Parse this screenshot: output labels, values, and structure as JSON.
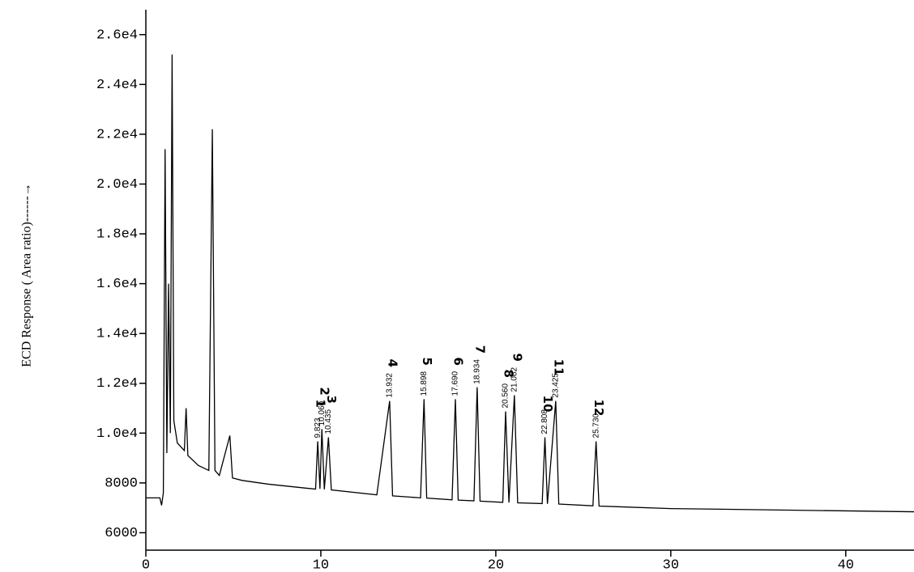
{
  "chart_data": {
    "type": "line",
    "y_label": "ECD Response ( Area ratio)------→",
    "x": [
      0,
      0.8,
      0.9,
      1.0,
      1.1,
      1.2,
      1.3,
      1.4,
      1.5,
      1.6,
      1.8,
      2.2,
      2.3,
      2.4,
      3.0,
      3.6,
      3.8,
      3.95,
      4.2,
      4.8,
      4.95,
      5.5,
      7,
      9.7,
      9.823,
      9.95,
      10.06,
      10.2,
      10.435,
      10.6,
      13.2,
      13.932,
      14.1,
      15.7,
      15.898,
      16.05,
      17.5,
      17.69,
      17.85,
      18.75,
      18.934,
      19.1,
      20.4,
      20.56,
      20.75,
      21.062,
      21.25,
      22.65,
      22.808,
      22.95,
      23.425,
      23.6,
      25.55,
      25.73,
      25.9,
      30,
      44
    ],
    "values": [
      7400,
      7400,
      7100,
      7600,
      21400,
      9200,
      16000,
      10000,
      25200,
      10500,
      9600,
      9300,
      11000,
      9100,
      8700,
      8500,
      22200,
      8500,
      8300,
      9900,
      8200,
      8100,
      7950,
      7750,
      9670,
      7760,
      10160,
      7740,
      9830,
      7720,
      7520,
      11290,
      7480,
      7400,
      11360,
      7390,
      7320,
      11360,
      7310,
      7280,
      11840,
      7270,
      7220,
      10870,
      7210,
      11520,
      7200,
      7170,
      9830,
      7160,
      11290,
      7150,
      7080,
      9670,
      7070,
      6970,
      6840
    ],
    "color": "#000000",
    "xlim": [
      0,
      43.9
    ],
    "ylim": [
      5300,
      27000
    ],
    "xticks": [
      0,
      10,
      20,
      30,
      40
    ],
    "yticks": [
      6000,
      8000,
      {
        "value": 10000,
        "label": "1.0e4"
      },
      {
        "value": 12000,
        "label": "1.2e4"
      },
      {
        "value": 14000,
        "label": "1.4e4"
      },
      {
        "value": 16000,
        "label": "1.6e4"
      },
      {
        "value": 18000,
        "label": "1.8e4"
      },
      {
        "value": 20000,
        "label": "2.0e4"
      },
      {
        "value": 22000,
        "label": "2.2e4"
      },
      {
        "value": 24000,
        "label": "2.4e4"
      },
      {
        "value": 26000,
        "label": "2.6e4"
      }
    ],
    "peaks": [
      {
        "x": 9.823,
        "height": 9670,
        "time": "9.823",
        "label": "1"
      },
      {
        "x": 10.06,
        "height": 10160,
        "time": "10.060",
        "label": "2"
      },
      {
        "x": 10.435,
        "height": 9830,
        "time": "10.435",
        "label": "3"
      },
      {
        "x": 13.932,
        "height": 11290,
        "time": "13.932",
        "label": "4"
      },
      {
        "x": 15.898,
        "height": 11360,
        "time": "15.898",
        "label": "5"
      },
      {
        "x": 17.69,
        "height": 11360,
        "time": "17.690",
        "label": "6"
      },
      {
        "x": 18.934,
        "height": 11840,
        "time": "18.934",
        "label": "7"
      },
      {
        "x": 20.56,
        "height": 10870,
        "time": "20.560",
        "label": "8"
      },
      {
        "x": 21.062,
        "height": 11520,
        "time": "21.062",
        "label": "9"
      },
      {
        "x": 22.808,
        "height": 9830,
        "time": "22.808",
        "label": "10"
      },
      {
        "x": 23.425,
        "height": 11290,
        "time": "23.425",
        "label": "11"
      },
      {
        "x": 25.73,
        "height": 9670,
        "time": "25.730",
        "label": "12"
      }
    ]
  }
}
